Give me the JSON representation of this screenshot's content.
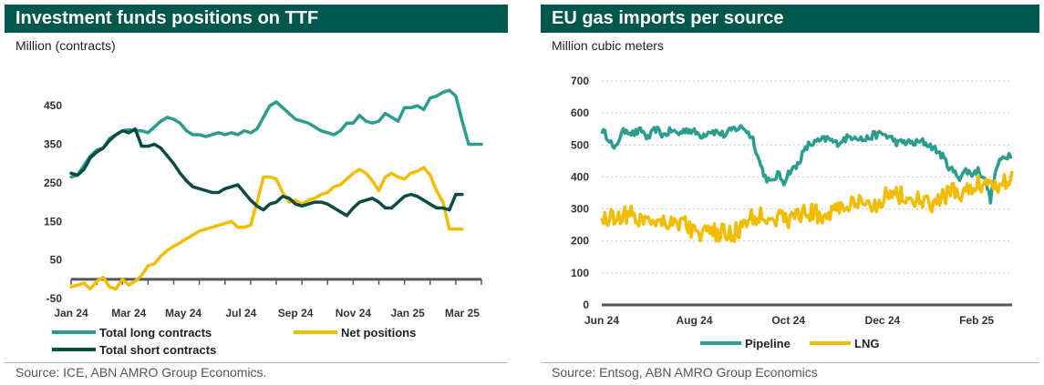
{
  "left": {
    "title": "Investment funds positions on TTF",
    "subtitle": "Million (contracts)",
    "source": "Source: ICE, ABN AMRO Group Economics."
  },
  "right": {
    "title": "EU gas imports per source",
    "subtitle": "Million cubic meters",
    "source": "Source: Entsog, ABN AMRO Group Economics"
  },
  "chart_data": [
    {
      "type": "line",
      "title": "Investment funds positions on TTF",
      "ylabel": "Million (contracts)",
      "ylim": [
        -50,
        500
      ],
      "yticks": [
        -50,
        50,
        150,
        250,
        350,
        450
      ],
      "xlim": [
        0,
        64
      ],
      "xticks": [
        {
          "x": 0,
          "label": "Jan 24"
        },
        {
          "x": 9,
          "label": "Mar 24"
        },
        {
          "x": 17.5,
          "label": "May 24"
        },
        {
          "x": 26.5,
          "label": "Jul 24"
        },
        {
          "x": 35,
          "label": "Sep 24"
        },
        {
          "x": 44,
          "label": "Nov 24"
        },
        {
          "x": 52.5,
          "label": "Jan 25"
        },
        {
          "x": 61,
          "label": "Mar 25"
        }
      ],
      "grid": true,
      "legend": "bottom",
      "colors": {
        "long": "#2a9d8f",
        "net": "#f2bd00",
        "short": "#0d4a44"
      },
      "series": [
        {
          "name": "Total long contracts",
          "key": "long",
          "values": [
            265,
            270,
            295,
            320,
            335,
            340,
            365,
            375,
            385,
            388,
            385,
            385,
            380,
            395,
            410,
            420,
            415,
            405,
            385,
            375,
            375,
            370,
            375,
            380,
            375,
            380,
            375,
            385,
            380,
            390,
            420,
            450,
            460,
            445,
            430,
            415,
            410,
            405,
            395,
            385,
            380,
            375,
            385,
            405,
            405,
            425,
            410,
            405,
            410,
            430,
            420,
            410,
            445,
            445,
            450,
            440,
            470,
            475,
            485,
            490,
            475,
            410,
            350,
            350,
            350
          ]
        },
        {
          "name": "Net positions",
          "key": "net",
          "values": [
            -20,
            -15,
            -10,
            -25,
            -5,
            5,
            -20,
            -25,
            0,
            -15,
            -5,
            10,
            35,
            40,
            60,
            75,
            85,
            95,
            105,
            115,
            125,
            130,
            135,
            140,
            145,
            150,
            135,
            135,
            140,
            200,
            265,
            265,
            260,
            225,
            200,
            205,
            195,
            205,
            210,
            220,
            225,
            240,
            245,
            260,
            275,
            285,
            275,
            255,
            230,
            265,
            275,
            265,
            260,
            275,
            280,
            290,
            270,
            230,
            200,
            130,
            130,
            130
          ]
        },
        {
          "name": "Total short contracts",
          "key": "short",
          "values": [
            275,
            270,
            285,
            315,
            330,
            340,
            360,
            375,
            385,
            380,
            390,
            345,
            345,
            350,
            340,
            320,
            300,
            275,
            255,
            240,
            235,
            230,
            225,
            225,
            235,
            240,
            245,
            225,
            205,
            190,
            180,
            195,
            200,
            215,
            210,
            195,
            190,
            195,
            200,
            200,
            195,
            185,
            175,
            165,
            185,
            200,
            205,
            210,
            200,
            185,
            185,
            200,
            215,
            220,
            215,
            205,
            195,
            185,
            185,
            180,
            220,
            220
          ]
        }
      ]
    },
    {
      "type": "line",
      "title": "EU gas imports per source",
      "ylabel": "Million cubic meters",
      "ylim": [
        0,
        700
      ],
      "yticks": [
        0,
        100,
        200,
        300,
        400,
        500,
        600,
        700
      ],
      "xlim": [
        0,
        266
      ],
      "xticks": [
        {
          "x": 0,
          "label": "Jun 24"
        },
        {
          "x": 60,
          "label": "Aug 24"
        },
        {
          "x": 121,
          "label": "Oct 24"
        },
        {
          "x": 182,
          "label": "Dec 24"
        },
        {
          "x": 243,
          "label": "Feb 25"
        }
      ],
      "grid": true,
      "legend": "bottom",
      "colors": {
        "pipeline": "#2a9d8f",
        "lng": "#f2bd00"
      },
      "series": [
        {
          "name": "Pipeline",
          "key": "pipeline",
          "anchors": [
            [
              0,
              545
            ],
            [
              5,
              520
            ],
            [
              8,
              480
            ],
            [
              12,
              530
            ],
            [
              16,
              550
            ],
            [
              20,
              535
            ],
            [
              26,
              545
            ],
            [
              30,
              520
            ],
            [
              35,
              550
            ],
            [
              40,
              530
            ],
            [
              45,
              545
            ],
            [
              50,
              535
            ],
            [
              55,
              550
            ],
            [
              60,
              540
            ],
            [
              65,
              530
            ],
            [
              70,
              545
            ],
            [
              75,
              540
            ],
            [
              80,
              530
            ],
            [
              85,
              550
            ],
            [
              92,
              555
            ],
            [
              98,
              520
            ],
            [
              102,
              450
            ],
            [
              106,
              400
            ],
            [
              110,
              380
            ],
            [
              114,
              410
            ],
            [
              118,
              385
            ],
            [
              122,
              420
            ],
            [
              126,
              430
            ],
            [
              130,
              470
            ],
            [
              134,
              500
            ],
            [
              140,
              510
            ],
            [
              146,
              520
            ],
            [
              152,
              505
            ],
            [
              158,
              520
            ],
            [
              164,
              530
            ],
            [
              170,
              515
            ],
            [
              176,
              530
            ],
            [
              182,
              535
            ],
            [
              188,
              520
            ],
            [
              192,
              505
            ],
            [
              196,
              510
            ],
            [
              202,
              505
            ],
            [
              208,
              510
            ],
            [
              214,
              495
            ],
            [
              220,
              470
            ],
            [
              224,
              440
            ],
            [
              228,
              415
            ],
            [
              232,
              400
            ],
            [
              236,
              420
            ],
            [
              240,
              410
            ],
            [
              244,
              420
            ],
            [
              248,
              400
            ],
            [
              252,
              330
            ],
            [
              256,
              430
            ],
            [
              260,
              460
            ],
            [
              266,
              475
            ]
          ],
          "noise": 12
        },
        {
          "name": "LNG",
          "key": "lng",
          "anchors": [
            [
              0,
              270
            ],
            [
              8,
              275
            ],
            [
              16,
              285
            ],
            [
              24,
              270
            ],
            [
              32,
              270
            ],
            [
              40,
              265
            ],
            [
              48,
              260
            ],
            [
              54,
              255
            ],
            [
              60,
              230
            ],
            [
              66,
              220
            ],
            [
              72,
              225
            ],
            [
              78,
              225
            ],
            [
              84,
              220
            ],
            [
              90,
              240
            ],
            [
              96,
              265
            ],
            [
              104,
              285
            ],
            [
              112,
              275
            ],
            [
              120,
              265
            ],
            [
              128,
              285
            ],
            [
              136,
              290
            ],
            [
              144,
              275
            ],
            [
              152,
              305
            ],
            [
              160,
              310
            ],
            [
              168,
              315
            ],
            [
              174,
              305
            ],
            [
              180,
              325
            ],
            [
              186,
              350
            ],
            [
              192,
              345
            ],
            [
              198,
              330
            ],
            [
              206,
              325
            ],
            [
              214,
              310
            ],
            [
              222,
              340
            ],
            [
              230,
              355
            ],
            [
              236,
              345
            ],
            [
              242,
              375
            ],
            [
              248,
              385
            ],
            [
              254,
              375
            ],
            [
              260,
              385
            ],
            [
              266,
              410
            ]
          ],
          "noise": 30
        }
      ]
    }
  ]
}
